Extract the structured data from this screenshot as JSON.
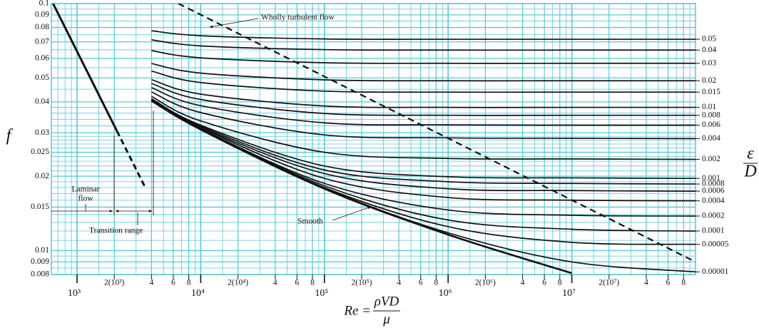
{
  "chart_data": {
    "type": "line",
    "xscale": "log",
    "yscale": "log",
    "grid": true,
    "grid_color": "#5cc6d6",
    "color": "#111111",
    "xlim": [
      620,
      100000000
    ],
    "ylim": [
      0.008,
      0.1
    ],
    "xticks": [
      {
        "value": 1000,
        "label": "10³"
      },
      {
        "value": 2000,
        "label": "2(10³)"
      },
      {
        "value": 4000,
        "label": "4"
      },
      {
        "value": 6000,
        "label": "6"
      },
      {
        "value": 8000,
        "label": "8"
      },
      {
        "value": 10000,
        "label": "10⁴"
      },
      {
        "value": 20000,
        "label": "2(10⁴)"
      },
      {
        "value": 40000,
        "label": "4"
      },
      {
        "value": 60000,
        "label": "6"
      },
      {
        "value": 80000,
        "label": "8"
      },
      {
        "value": 100000,
        "label": "10⁵"
      },
      {
        "value": 200000,
        "label": "2(10⁵)"
      },
      {
        "value": 400000,
        "label": "4"
      },
      {
        "value": 600000,
        "label": "6"
      },
      {
        "value": 800000,
        "label": "8"
      },
      {
        "value": 1000000,
        "label": "10⁶"
      },
      {
        "value": 2000000,
        "label": "2(10⁶)"
      },
      {
        "value": 4000000,
        "label": "4"
      },
      {
        "value": 6000000,
        "label": "6"
      },
      {
        "value": 8000000,
        "label": "8"
      },
      {
        "value": 10000000,
        "label": "10⁷"
      },
      {
        "value": 20000000,
        "label": "2(10⁷)"
      },
      {
        "value": 40000000,
        "label": "4"
      },
      {
        "value": 60000000,
        "label": "6"
      },
      {
        "value": 80000000,
        "label": "8"
      }
    ],
    "xminor": [
      700,
      800,
      900,
      1500,
      3000,
      5000,
      7000,
      9000,
      15000,
      30000,
      50000,
      70000,
      90000,
      150000,
      300000,
      500000,
      700000,
      900000,
      1500000,
      3000000,
      5000000,
      7000000,
      9000000,
      15000000,
      30000000,
      50000000,
      70000000,
      90000000
    ],
    "yticks": [
      0.008,
      0.009,
      0.01,
      0.015,
      0.02,
      0.025,
      0.03,
      0.04,
      0.05,
      0.06,
      0.07,
      0.08,
      0.09,
      0.1
    ],
    "yminor": [
      0.0085,
      0.0095,
      0.011,
      0.012,
      0.013,
      0.014,
      0.016,
      0.017,
      0.018,
      0.019,
      0.021,
      0.022,
      0.023,
      0.024,
      0.026,
      0.027,
      0.028,
      0.029,
      0.032,
      0.034,
      0.036,
      0.038,
      0.045,
      0.055,
      0.065,
      0.075,
      0.085,
      0.095
    ],
    "y_label": "f",
    "right_label": {
      "numerator": "ε",
      "denominator": "D"
    },
    "x_label": {
      "lhs": "Re =",
      "numerator": "ρVD",
      "denominator": "μ"
    },
    "x": [
      4000,
      10000,
      100000,
      1000000,
      10000000,
      100000000
    ],
    "series": [
      {
        "name": "0.05",
        "values": [
          0.0776,
          0.0741,
          0.0719,
          0.0717,
          0.0717,
          0.0717
        ]
      },
      {
        "name": "0.04",
        "values": [
          0.0713,
          0.0674,
          0.0651,
          0.0648,
          0.0648,
          0.0648
        ]
      },
      {
        "name": "0.03",
        "values": [
          0.0645,
          0.0603,
          0.0576,
          0.0573,
          0.0573,
          0.0573
        ]
      },
      {
        "name": "0.02",
        "values": [
          0.0572,
          0.0523,
          0.0491,
          0.0487,
          0.0487,
          0.0487
        ]
      },
      {
        "name": "0.015",
        "values": [
          0.0533,
          0.0479,
          0.0442,
          0.0438,
          0.0438,
          0.0438
        ]
      },
      {
        "name": "0.01",
        "values": [
          0.0492,
          0.043,
          0.0385,
          0.038,
          0.038,
          0.038
        ]
      },
      {
        "name": "0.008",
        "values": [
          0.0475,
          0.0409,
          0.0359,
          0.0353,
          0.0353,
          0.0353
        ]
      },
      {
        "name": "0.006",
        "values": [
          0.0457,
          0.0386,
          0.0329,
          0.0323,
          0.0322,
          0.0322
        ]
      },
      {
        "name": "0.004",
        "values": [
          0.0439,
          0.0362,
          0.0294,
          0.0286,
          0.0285,
          0.0284
        ]
      },
      {
        "name": "0.002",
        "values": [
          0.0421,
          0.0335,
          0.025,
          0.0236,
          0.0235,
          0.0234
        ]
      },
      {
        "name": "0.001",
        "values": [
          0.0412,
          0.0322,
          0.022,
          0.0199,
          0.0197,
          0.0196
        ]
      },
      {
        "name": "0.0008",
        "values": [
          0.041,
          0.0319,
          0.0212,
          0.019,
          0.0187,
          0.0186
        ]
      },
      {
        "name": "0.0006",
        "values": [
          0.0409,
          0.0316,
          0.0205,
          0.0178,
          0.0175,
          0.0174
        ]
      },
      {
        "name": "0.0004",
        "values": [
          0.0407,
          0.0314,
          0.0196,
          0.0164,
          0.016,
          0.0159
        ]
      },
      {
        "name": "0.0002",
        "values": [
          0.0405,
          0.0311,
          0.0187,
          0.0146,
          0.0139,
          0.0138
        ]
      },
      {
        "name": "0.0001",
        "values": [
          0.0405,
          0.031,
          0.0183,
          0.0133,
          0.0122,
          0.012
        ]
      },
      {
        "name": "0.00005",
        "values": [
          0.0404,
          0.0309,
          0.018,
          0.0125,
          0.0108,
          0.0106
        ]
      },
      {
        "name": "0.00001",
        "values": [
          0.0404,
          0.0309,
          0.0179,
          0.0118,
          0.009,
          0.0082
        ]
      }
    ],
    "smooth": {
      "name": "Smooth",
      "values": [
        0.0404,
        0.0309,
        0.0178,
        0.0116,
        0.0081,
        null
      ]
    },
    "laminar": {
      "solid": {
        "x": [
          640,
          2100
        ],
        "values": [
          0.1,
          0.0305
        ]
      },
      "dashed": {
        "x": [
          2100,
          3600
        ],
        "values": [
          0.0305,
          0.0178
        ]
      }
    },
    "turbulent_boundary": {
      "x": [
        6600,
        100000000
      ],
      "values": [
        0.1,
        0.009
      ]
    },
    "annotations": {
      "wholly_turbulent": "Wholly turbulent flow",
      "laminar_1": "Laminar",
      "laminar_2": "flow",
      "transition": "Transition range"
    }
  }
}
